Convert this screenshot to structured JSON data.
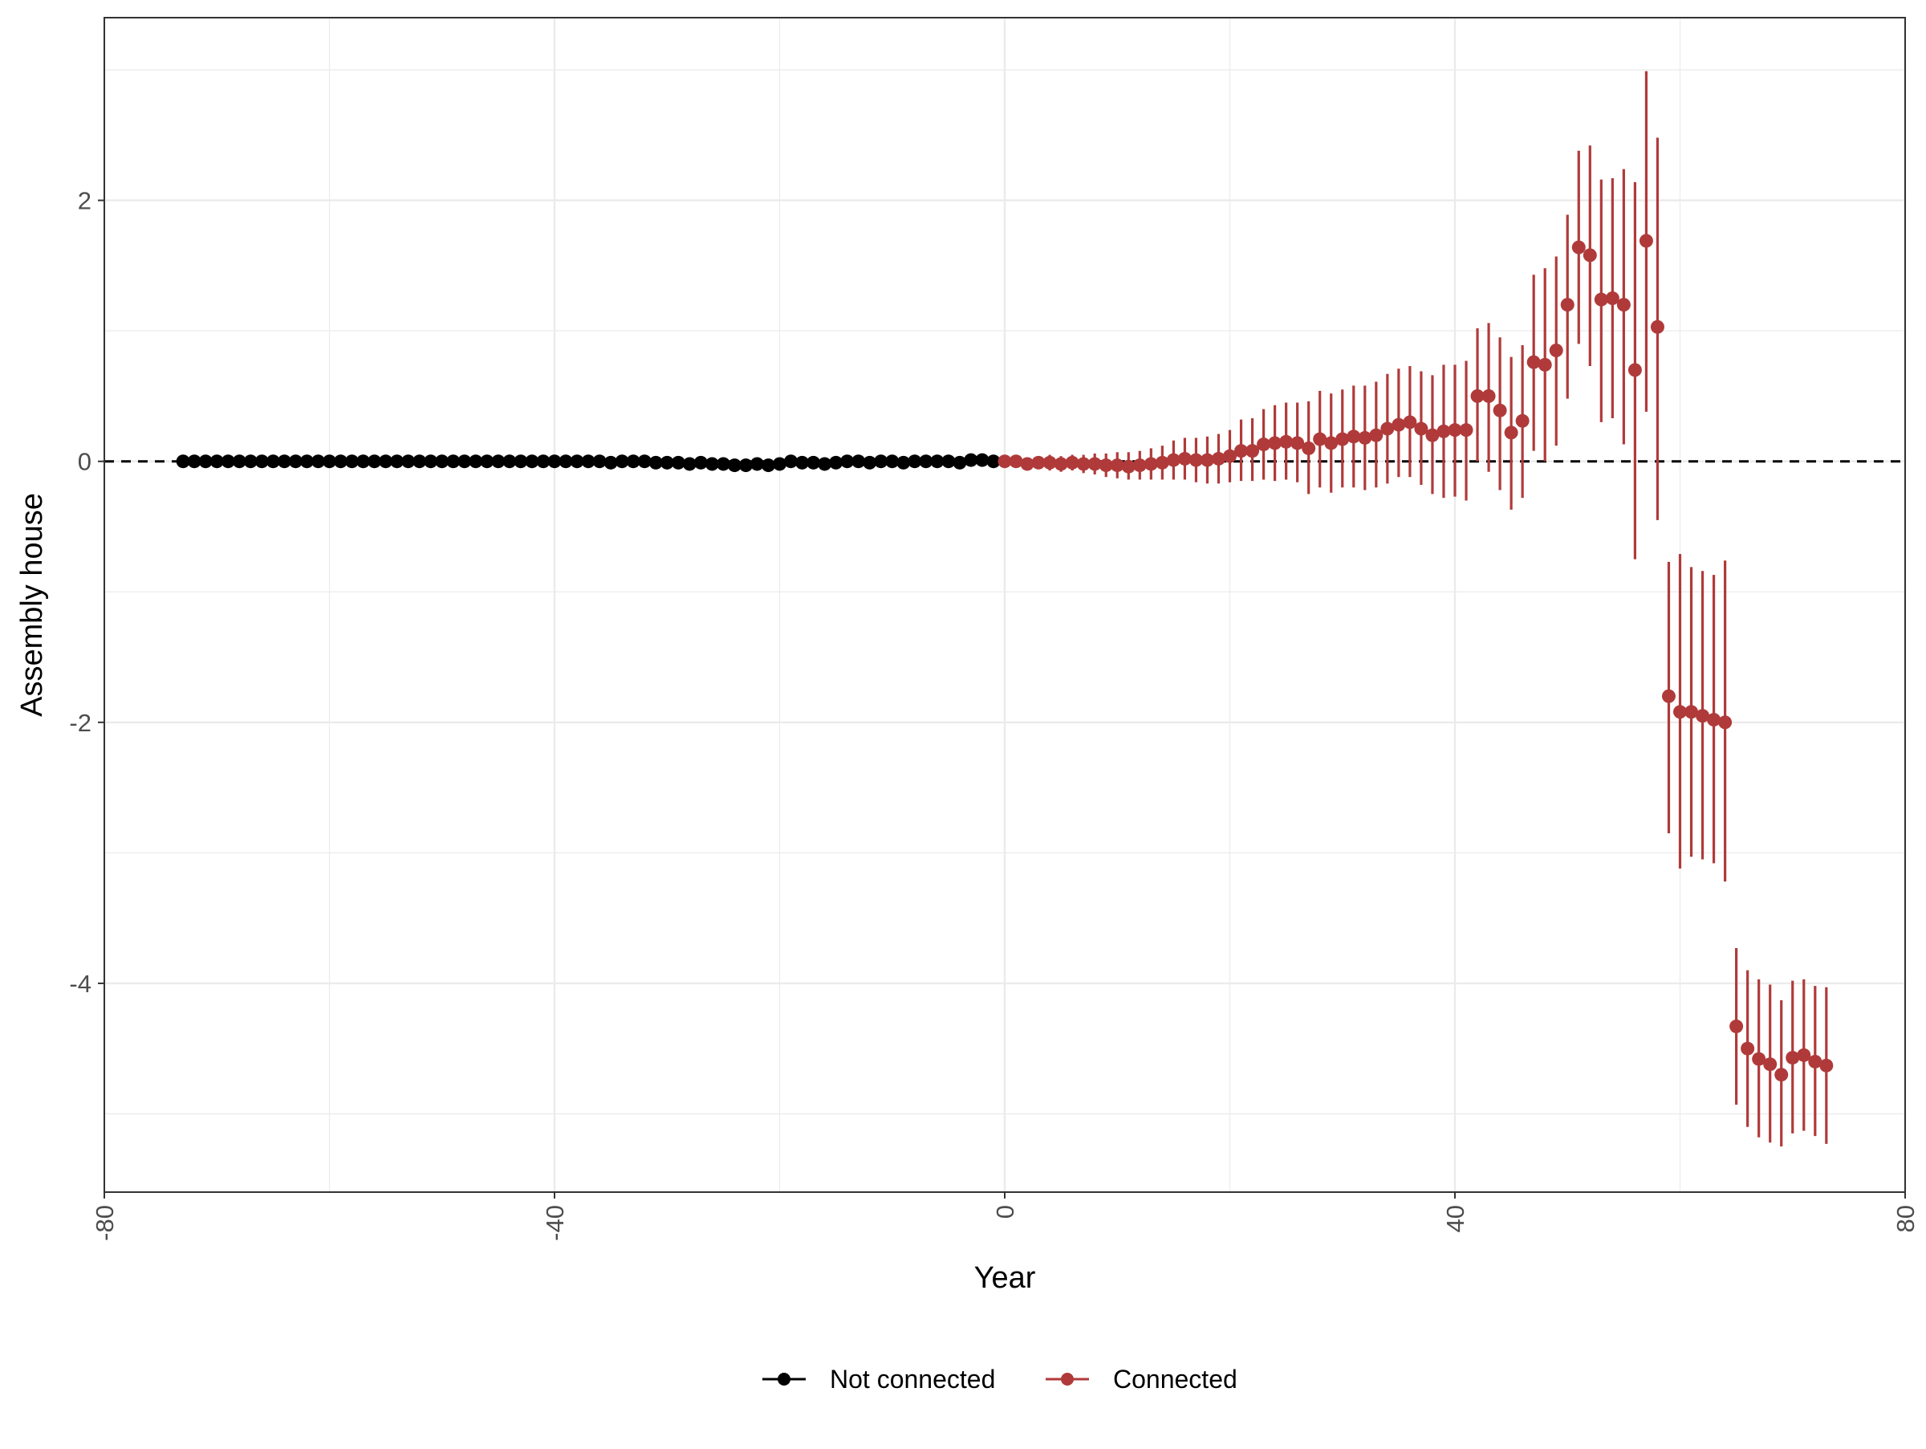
{
  "chart_data": {
    "type": "scatter",
    "xlabel": "Year",
    "ylabel": "Assembly house",
    "xlim": [
      -80,
      80
    ],
    "ylim": [
      -5.6,
      3.4
    ],
    "x_ticks": [
      "-80",
      "-40",
      "0",
      "40",
      "80"
    ],
    "y_ticks": [
      "2",
      "0",
      "-2",
      "-4"
    ],
    "x_tick_values": [
      -80,
      -40,
      0,
      40,
      80
    ],
    "y_tick_values": [
      2,
      0,
      -2,
      -4
    ],
    "reference_line": {
      "y": 0,
      "style": "dashed",
      "color": "#000000"
    },
    "grid": true,
    "legend_position": "bottom",
    "colors": {
      "not_connected": "#000000",
      "connected": "#b03a3a",
      "grid": "#ebebeb",
      "panel_border": "#333333"
    },
    "series": [
      {
        "name": "Not connected",
        "color": "#000000",
        "x": [
          -73,
          -72,
          -71,
          -70,
          -69,
          -68,
          -67,
          -66,
          -65,
          -64,
          -63,
          -62,
          -61,
          -60,
          -59,
          -58,
          -57,
          -56,
          -55,
          -54,
          -53,
          -52,
          -51,
          -50,
          -49,
          -48,
          -47,
          -46,
          -45,
          -44,
          -43,
          -42,
          -41,
          -40,
          -39,
          -38,
          -37,
          -36,
          -35,
          -34,
          -33,
          -32,
          -31,
          -30,
          -29,
          -28,
          -27,
          -26,
          -25,
          -24,
          -23,
          -22,
          -21,
          -20,
          -19,
          -18,
          -17,
          -16,
          -15,
          -14,
          -13,
          -12,
          -11,
          -10,
          -9,
          -8,
          -7,
          -6,
          -5,
          -4,
          -3,
          -2,
          -1
        ],
        "y": [
          0,
          0,
          0,
          0,
          0,
          0,
          0,
          0,
          0,
          0,
          0,
          0,
          0,
          0,
          0,
          0,
          0,
          0,
          0,
          0,
          0,
          0,
          0,
          0,
          0,
          0,
          0,
          0,
          0,
          0,
          0,
          0,
          0,
          0,
          0,
          0,
          0,
          0,
          -0.01,
          0,
          0,
          0,
          -0.01,
          -0.01,
          -0.01,
          -0.02,
          -0.01,
          -0.02,
          -0.02,
          -0.03,
          -0.03,
          -0.02,
          -0.03,
          -0.02,
          0,
          -0.01,
          -0.01,
          -0.02,
          -0.01,
          0,
          0,
          -0.01,
          0,
          0,
          -0.01,
          0,
          0,
          0,
          0,
          -0.01,
          0.01,
          0.01,
          0
        ]
      },
      {
        "name": "Connected",
        "color": "#b03a3a",
        "x": [
          0,
          1,
          2,
          3,
          4,
          5,
          6,
          7,
          8,
          9,
          10,
          11,
          12,
          13,
          14,
          15,
          16,
          17,
          18,
          19,
          20,
          21,
          22,
          23,
          24,
          25,
          26,
          27,
          28,
          29,
          30,
          31,
          32,
          33,
          34,
          35,
          36,
          37,
          38,
          39,
          40,
          41,
          42,
          43,
          44,
          45,
          46,
          47,
          48,
          49,
          50,
          51,
          52,
          53,
          54,
          55,
          56,
          57,
          58,
          59,
          60,
          61,
          62,
          63,
          64,
          65,
          66,
          67,
          68,
          69,
          70,
          71,
          72,
          73
        ],
        "y": [
          0,
          0,
          -0.02,
          -0.01,
          -0.01,
          -0.02,
          -0.01,
          -0.02,
          -0.02,
          -0.03,
          -0.03,
          -0.04,
          -0.03,
          -0.02,
          -0.01,
          0.01,
          0.02,
          0.01,
          0.01,
          0.02,
          0.04,
          0.08,
          0.08,
          0.13,
          0.14,
          0.15,
          0.14,
          0.1,
          0.17,
          0.14,
          0.17,
          0.19,
          0.18,
          0.2,
          0.25,
          0.28,
          0.3,
          0.25,
          0.2,
          0.23,
          0.24,
          0.24,
          0.5,
          0.5,
          0.39,
          0.22,
          0.31,
          0.76,
          0.74,
          0.85,
          1.2,
          1.64,
          1.58,
          1.24,
          1.25,
          1.2,
          0.7,
          1.69,
          1.03,
          -1.8,
          -1.92,
          -1.92,
          -1.95,
          -1.98,
          -2.0,
          -4.33,
          -4.5,
          -4.58,
          -4.62,
          -4.7,
          -4.57,
          -4.55,
          -4.6,
          -4.63
        ],
        "lower": [
          0,
          -0.04,
          -0.07,
          -0.06,
          -0.07,
          -0.08,
          -0.07,
          -0.09,
          -0.1,
          -0.12,
          -0.13,
          -0.14,
          -0.14,
          -0.14,
          -0.14,
          -0.14,
          -0.14,
          -0.16,
          -0.17,
          -0.17,
          -0.16,
          -0.15,
          -0.15,
          -0.14,
          -0.15,
          -0.14,
          -0.16,
          -0.25,
          -0.2,
          -0.24,
          -0.2,
          -0.2,
          -0.22,
          -0.2,
          -0.17,
          -0.12,
          -0.12,
          -0.18,
          -0.25,
          -0.28,
          -0.27,
          -0.3,
          0.0,
          -0.08,
          -0.22,
          -0.37,
          -0.28,
          0.08,
          0.0,
          0.12,
          0.48,
          0.9,
          0.73,
          0.3,
          0.33,
          0.13,
          -0.75,
          0.38,
          -0.45,
          -2.85,
          -3.12,
          -3.03,
          -3.05,
          -3.08,
          -3.22,
          -4.93,
          -5.1,
          -5.18,
          -5.22,
          -5.25,
          -5.15,
          -5.13,
          -5.17,
          -5.23
        ],
        "upper": [
          0.02,
          0.04,
          0.03,
          0.04,
          0.05,
          0.04,
          0.05,
          0.05,
          0.06,
          0.06,
          0.07,
          0.07,
          0.08,
          0.1,
          0.12,
          0.16,
          0.18,
          0.18,
          0.19,
          0.21,
          0.24,
          0.32,
          0.33,
          0.4,
          0.43,
          0.45,
          0.45,
          0.46,
          0.54,
          0.52,
          0.55,
          0.58,
          0.58,
          0.61,
          0.67,
          0.71,
          0.73,
          0.69,
          0.66,
          0.74,
          0.74,
          0.77,
          1.02,
          1.06,
          0.95,
          0.8,
          0.89,
          1.43,
          1.48,
          1.57,
          1.89,
          2.38,
          2.42,
          2.16,
          2.17,
          2.24,
          2.14,
          2.99,
          2.48,
          -0.77,
          -0.71,
          -0.81,
          -0.84,
          -0.87,
          -0.76,
          -3.73,
          -3.9,
          -3.97,
          -4.01,
          -4.13,
          -3.98,
          -3.97,
          -4.02,
          -4.03
        ]
      }
    ]
  }
}
